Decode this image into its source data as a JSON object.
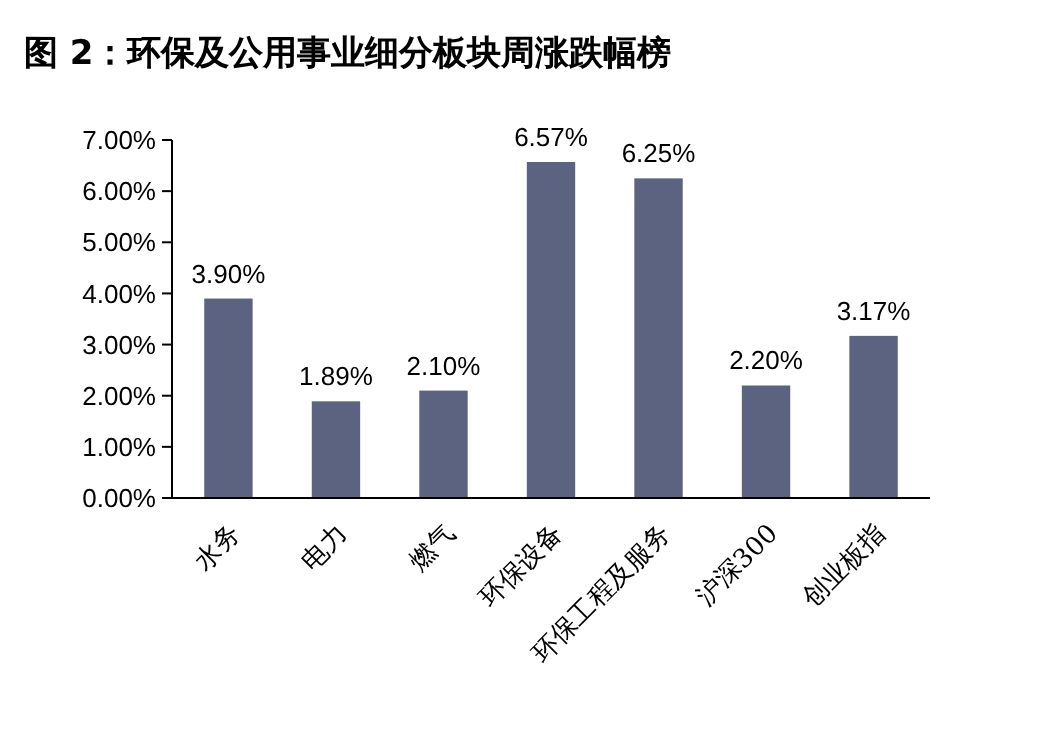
{
  "chart_data": {
    "type": "bar",
    "title": "图 2：环保及公用事业细分板块周涨跌幅榜",
    "categories": [
      "水务",
      "电力",
      "燃气",
      "环保设备",
      "环保工程及服务",
      "沪深300",
      "创业板指"
    ],
    "values": [
      3.9,
      1.89,
      2.1,
      6.57,
      6.25,
      2.2,
      3.17
    ],
    "value_labels": [
      "3.90%",
      "1.89%",
      "2.10%",
      "6.57%",
      "6.25%",
      "2.20%",
      "3.17%"
    ],
    "color": "#5b6380",
    "ylim": [
      0,
      7
    ],
    "yticks": [
      {
        "value": 0,
        "label": "0.00%"
      },
      {
        "value": 1,
        "label": "1.00%"
      },
      {
        "value": 2,
        "label": "2.00%"
      },
      {
        "value": 3,
        "label": "3.00%"
      },
      {
        "value": 4,
        "label": "4.00%"
      },
      {
        "value": 5,
        "label": "5.00%"
      },
      {
        "value": 6,
        "label": "6.00%"
      },
      {
        "value": 7,
        "label": "7.00%"
      }
    ]
  }
}
